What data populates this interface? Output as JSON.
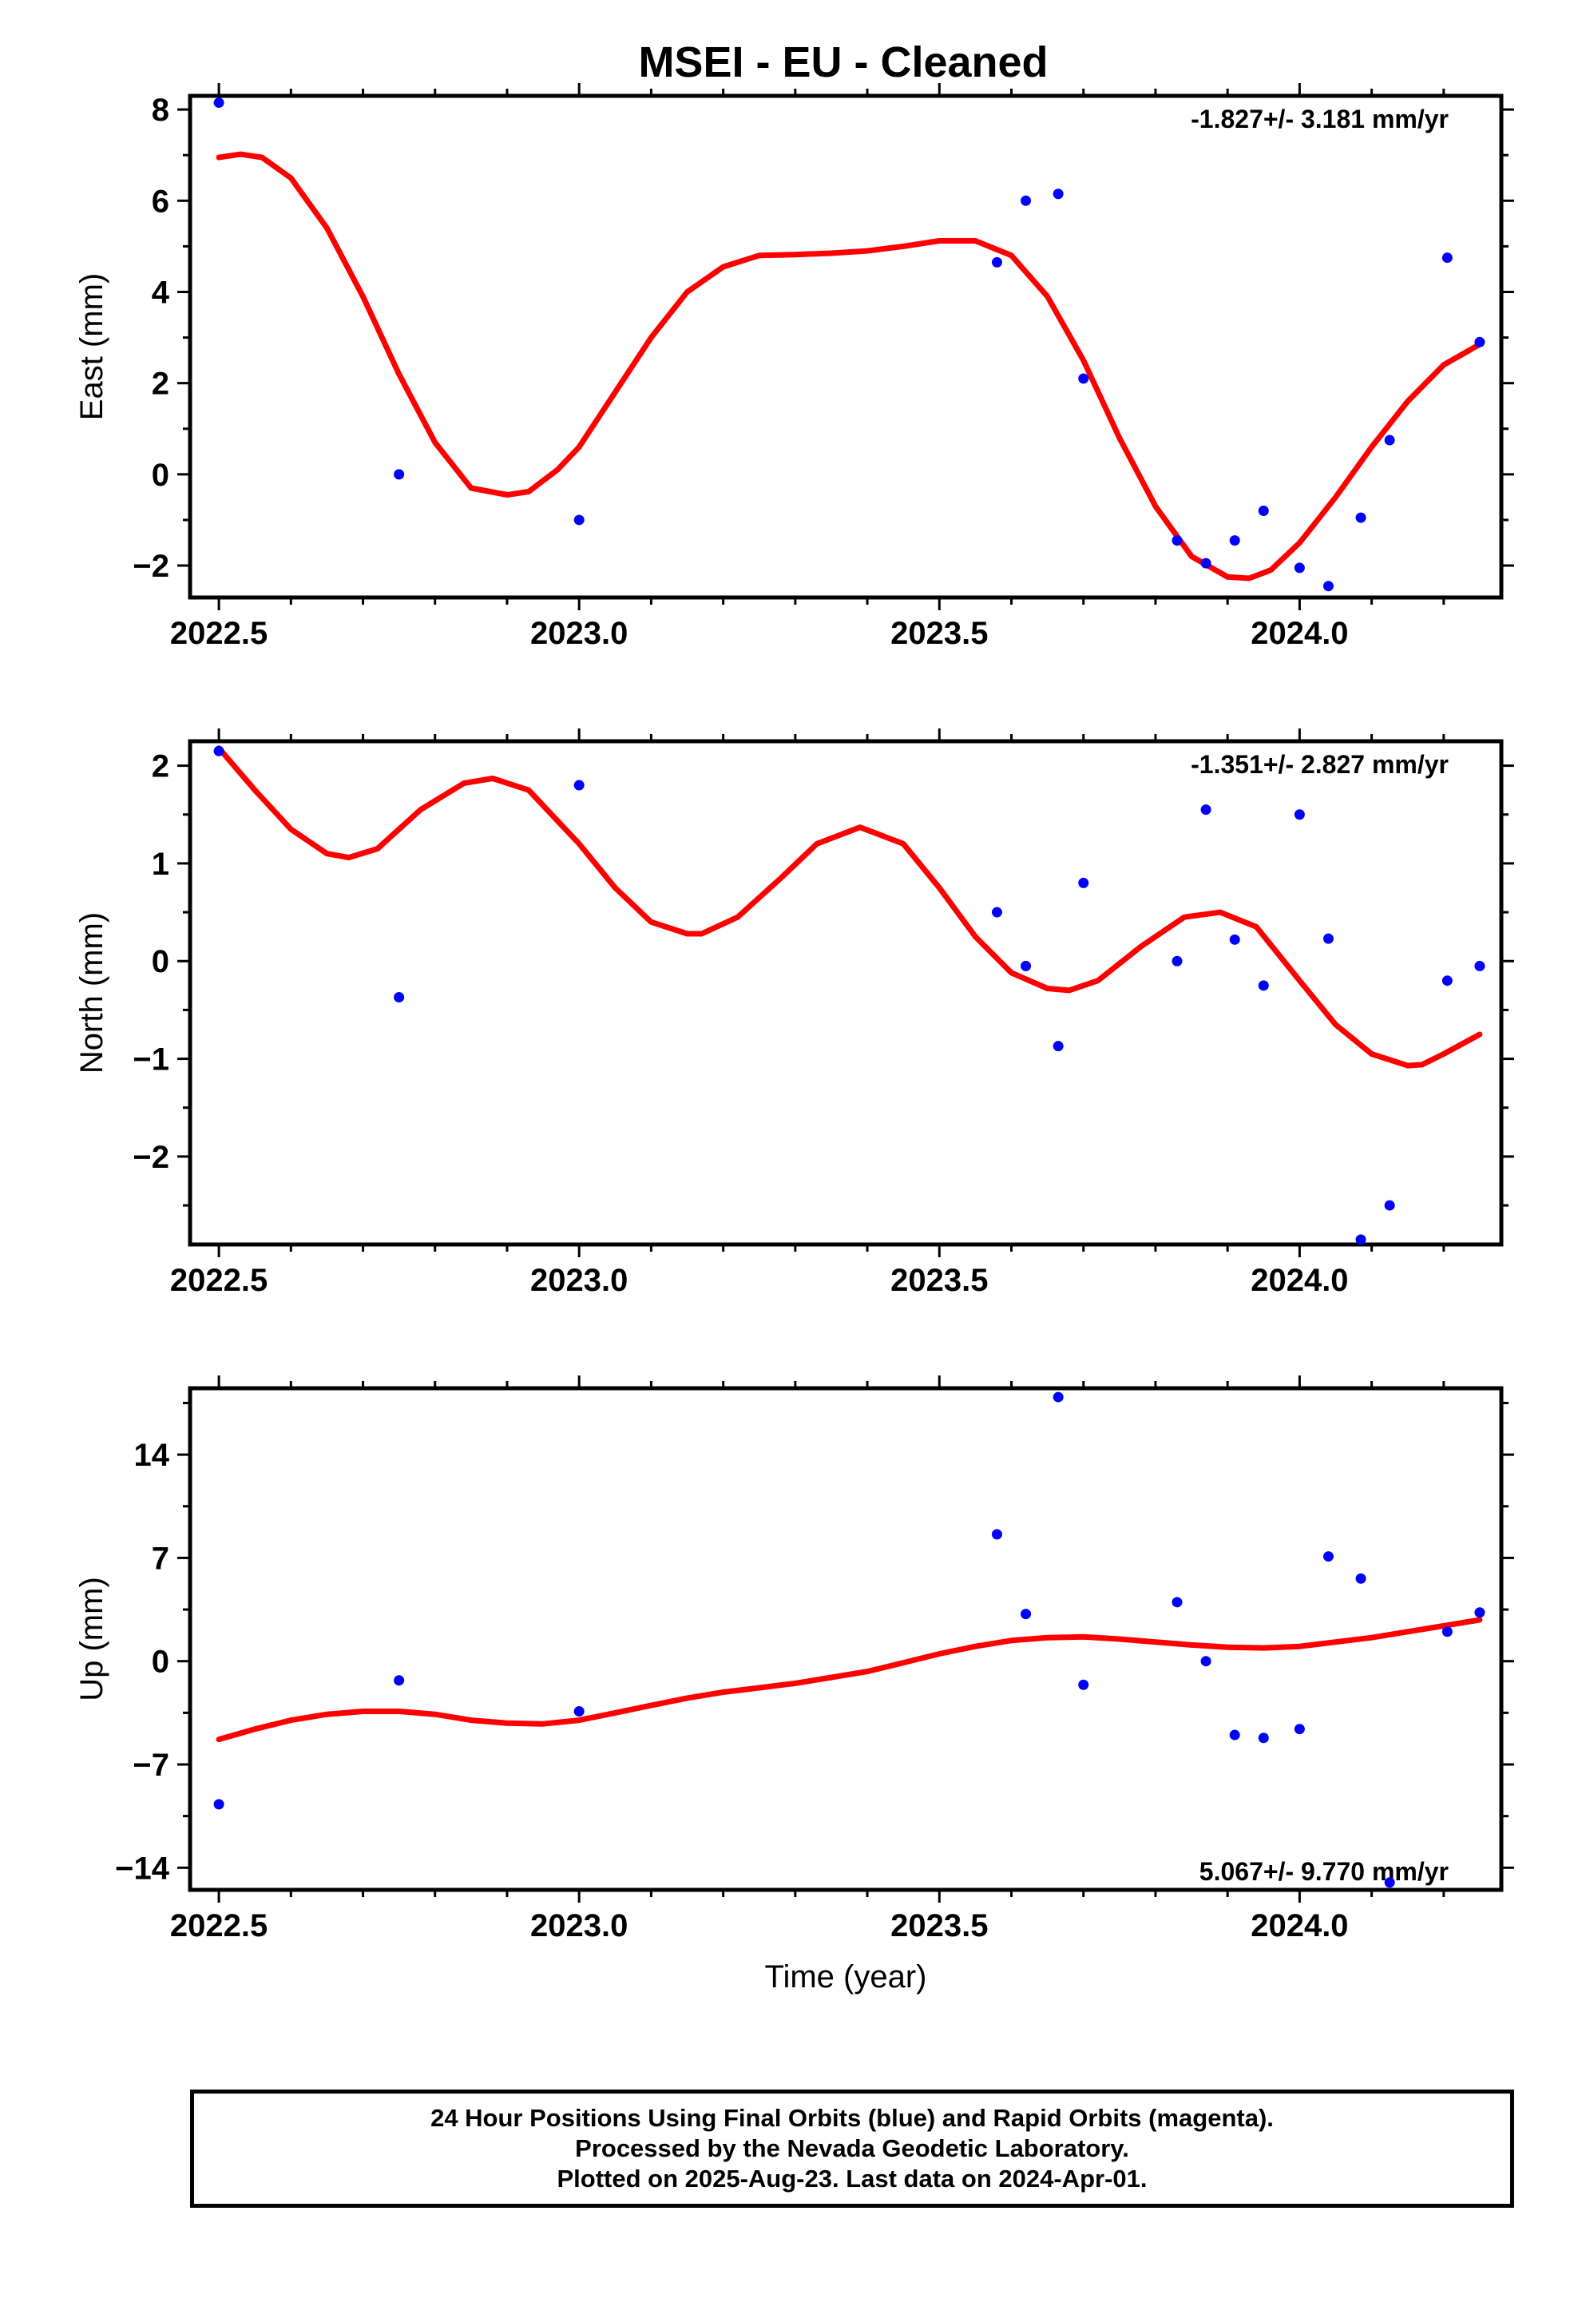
{
  "title": "MSEI  - EU - Cleaned",
  "colors": {
    "fit": "#ff0000",
    "points": "#0000ff",
    "axes": "#000000"
  },
  "chart_data": [
    {
      "type": "scatter",
      "ylabel": "East (mm)",
      "xlabel": "",
      "xlim": [
        2022.46,
        2024.28
      ],
      "ylim": [
        -2.7,
        8.3
      ],
      "xticks": [
        2022.5,
        2023.0,
        2023.5,
        2024.0
      ],
      "xtick_labels": [
        "2022.5",
        "2023.0",
        "2023.5",
        "2024.0"
      ],
      "yticks": [
        -2,
        0,
        2,
        4,
        6,
        8
      ],
      "ytick_labels": [
        "−2",
        "0",
        "2",
        "4",
        "6",
        "8"
      ],
      "rate_label": "-1.827+/- 3.181 mm/yr",
      "rate_position": "top-right",
      "points": {
        "x": [
          2022.5,
          2022.75,
          2023.0,
          2023.58,
          2023.62,
          2023.665,
          2023.7,
          2023.83,
          2023.87,
          2023.91,
          2023.95,
          2024.0,
          2024.04,
          2024.085,
          2024.125,
          2024.205,
          2024.25
        ],
        "y": [
          8.15,
          0.0,
          -1.0,
          4.65,
          6.0,
          6.15,
          2.1,
          -1.45,
          -1.95,
          -1.45,
          -0.8,
          -2.05,
          -2.45,
          -0.95,
          0.75,
          4.75,
          2.9
        ]
      },
      "fit": {
        "x": [
          2022.5,
          2022.53,
          2022.56,
          2022.6,
          2022.65,
          2022.7,
          2022.75,
          2022.8,
          2022.85,
          2022.9,
          2022.93,
          2022.97,
          2023.0,
          2023.05,
          2023.1,
          2023.15,
          2023.2,
          2023.25,
          2023.3,
          2023.35,
          2023.4,
          2023.45,
          2023.5,
          2023.55,
          2023.6,
          2023.65,
          2023.7,
          2023.75,
          2023.8,
          2023.85,
          2023.9,
          2023.93,
          2023.96,
          2024.0,
          2024.05,
          2024.1,
          2024.15,
          2024.2,
          2024.25
        ],
        "y": [
          6.95,
          7.02,
          6.95,
          6.5,
          5.4,
          3.9,
          2.2,
          0.7,
          -0.3,
          -0.45,
          -0.38,
          0.1,
          0.6,
          1.8,
          3.0,
          4.0,
          4.55,
          4.8,
          4.82,
          4.85,
          4.9,
          5.0,
          5.12,
          5.12,
          4.8,
          3.9,
          2.5,
          0.8,
          -0.7,
          -1.8,
          -2.25,
          -2.28,
          -2.1,
          -1.5,
          -0.5,
          0.6,
          1.6,
          2.4,
          2.85
        ]
      }
    },
    {
      "type": "scatter",
      "ylabel": "North (mm)",
      "xlabel": "",
      "xlim": [
        2022.46,
        2024.28
      ],
      "ylim": [
        -2.9,
        2.25
      ],
      "xticks": [
        2022.5,
        2023.0,
        2023.5,
        2024.0
      ],
      "xtick_labels": [
        "2022.5",
        "2023.0",
        "2023.5",
        "2024.0"
      ],
      "yticks": [
        -2,
        -1,
        0,
        1,
        2
      ],
      "ytick_labels": [
        "−2",
        "−1",
        "0",
        "1",
        "2"
      ],
      "rate_label": "-1.351+/- 2.827 mm/yr",
      "rate_position": "top-right",
      "points": {
        "x": [
          2022.5,
          2022.75,
          2023.0,
          2023.58,
          2023.62,
          2023.665,
          2023.7,
          2023.83,
          2023.87,
          2023.91,
          2023.95,
          2024.0,
          2024.04,
          2024.085,
          2024.125,
          2024.205,
          2024.25
        ],
        "y": [
          2.15,
          -0.37,
          1.8,
          0.5,
          -0.05,
          -0.87,
          0.8,
          0.0,
          1.55,
          0.22,
          -0.25,
          1.5,
          0.23,
          -2.85,
          -2.5,
          -0.2,
          -0.05
        ]
      },
      "fit": {
        "x": [
          2022.5,
          2022.55,
          2022.6,
          2022.65,
          2022.68,
          2022.72,
          2022.78,
          2022.84,
          2022.88,
          2022.93,
          2023.0,
          2023.05,
          2023.1,
          2023.15,
          2023.17,
          2023.22,
          2023.28,
          2023.33,
          2023.39,
          2023.45,
          2023.5,
          2023.55,
          2023.6,
          2023.65,
          2023.68,
          2023.72,
          2023.78,
          2023.84,
          2023.89,
          2023.94,
          2024.0,
          2024.05,
          2024.1,
          2024.15,
          2024.17,
          2024.2,
          2024.25
        ],
        "y": [
          2.18,
          1.75,
          1.35,
          1.1,
          1.06,
          1.15,
          1.55,
          1.82,
          1.87,
          1.75,
          1.2,
          0.75,
          0.4,
          0.28,
          0.28,
          0.45,
          0.85,
          1.2,
          1.37,
          1.2,
          0.75,
          0.25,
          -0.12,
          -0.28,
          -0.3,
          -0.2,
          0.15,
          0.45,
          0.5,
          0.35,
          -0.2,
          -0.65,
          -0.95,
          -1.07,
          -1.06,
          -0.95,
          -0.75
        ]
      }
    },
    {
      "type": "scatter",
      "ylabel": "Up (mm)",
      "xlabel": "Time (year)",
      "xlim": [
        2022.46,
        2024.28
      ],
      "ylim": [
        -15.5,
        18.5
      ],
      "xticks": [
        2022.5,
        2023.0,
        2023.5,
        2024.0
      ],
      "xtick_labels": [
        "2022.5",
        "2023.0",
        "2023.5",
        "2024.0"
      ],
      "yticks": [
        -14,
        -7,
        0,
        7,
        14
      ],
      "ytick_labels": [
        "−14",
        "−7",
        "0",
        "7",
        "14"
      ],
      "rate_label": "5.067+/- 9.770 mm/yr",
      "rate_position": "bottom-right",
      "points": {
        "x": [
          2022.5,
          2022.75,
          2023.0,
          2023.58,
          2023.62,
          2023.665,
          2023.7,
          2023.83,
          2023.87,
          2023.91,
          2023.95,
          2024.0,
          2024.04,
          2024.085,
          2024.125,
          2024.205,
          2024.25
        ],
        "y": [
          -9.7,
          -1.3,
          -3.4,
          8.6,
          3.2,
          17.9,
          -1.6,
          4.0,
          0.0,
          -5.0,
          -5.2,
          -4.6,
          7.1,
          5.6,
          -15.0,
          2.0,
          3.3
        ]
      },
      "fit": {
        "x": [
          2022.5,
          2022.55,
          2022.6,
          2022.65,
          2022.7,
          2022.75,
          2022.8,
          2022.85,
          2022.9,
          2022.95,
          2023.0,
          2023.05,
          2023.1,
          2023.15,
          2023.2,
          2023.25,
          2023.3,
          2023.35,
          2023.4,
          2023.45,
          2023.5,
          2023.55,
          2023.6,
          2023.65,
          2023.7,
          2023.75,
          2023.8,
          2023.85,
          2023.9,
          2023.95,
          2024.0,
          2024.05,
          2024.1,
          2024.15,
          2024.2,
          2024.25
        ],
        "y": [
          -5.3,
          -4.6,
          -4.0,
          -3.6,
          -3.4,
          -3.4,
          -3.6,
          -4.0,
          -4.2,
          -4.25,
          -4.0,
          -3.5,
          -3.0,
          -2.5,
          -2.1,
          -1.8,
          -1.5,
          -1.1,
          -0.7,
          -0.1,
          0.5,
          1.0,
          1.4,
          1.6,
          1.65,
          1.5,
          1.3,
          1.1,
          0.95,
          0.9,
          1.0,
          1.3,
          1.6,
          2.0,
          2.4,
          2.8
        ]
      }
    }
  ],
  "footer": {
    "line1": "24 Hour Positions Using Final Orbits (blue) and Rapid Orbits (magenta).",
    "line2": "Processed by the Nevada Geodetic Laboratory.",
    "line3": "Plotted on 2025-Aug-23. Last data on 2024-Apr-01."
  }
}
